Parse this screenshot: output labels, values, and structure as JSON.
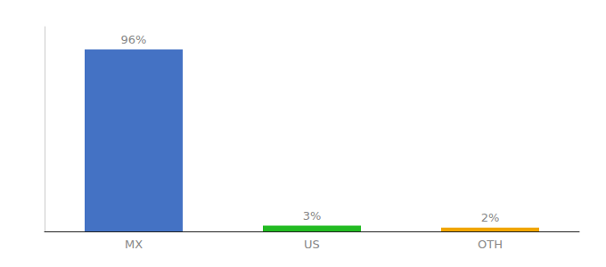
{
  "chart_data": {
    "type": "bar",
    "categories": [
      "MX",
      "US",
      "OTH"
    ],
    "values": [
      96,
      3,
      2
    ],
    "value_labels": [
      "96%",
      "3%",
      "2%"
    ],
    "colors": [
      "#4472c4",
      "#22bb22",
      "#f0a500"
    ],
    "ylim": [
      0,
      108
    ],
    "data_labels": true,
    "tick_labels": "x",
    "grid": false
  }
}
